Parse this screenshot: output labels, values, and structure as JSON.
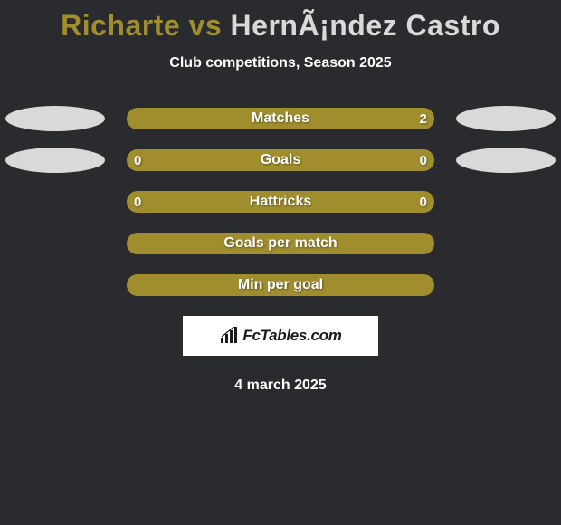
{
  "title": {
    "left": "Richarte",
    "vs": " vs ",
    "right": "HernÃ¡ndez Castro",
    "left_color": "#a08e2e",
    "right_color": "#d9d9d9"
  },
  "subtitle": "Club competitions, Season 2025",
  "rows": [
    {
      "label": "Matches",
      "left_val": "",
      "right_val": "2",
      "left_fill_pct": 0,
      "right_fill_pct": 100,
      "ellipse_left": true,
      "ellipse_right": true,
      "ellipse_left_color": "#d9d9d9",
      "ellipse_right_color": "#d9d9d9"
    },
    {
      "label": "Goals",
      "left_val": "0",
      "right_val": "0",
      "left_fill_pct": 0,
      "right_fill_pct": 0,
      "ellipse_left": true,
      "ellipse_right": true,
      "ellipse_left_color": "#d9d9d9",
      "ellipse_right_color": "#d9d9d9"
    },
    {
      "label": "Hattricks",
      "left_val": "0",
      "right_val": "0",
      "left_fill_pct": 0,
      "right_fill_pct": 0,
      "ellipse_left": false,
      "ellipse_right": false
    },
    {
      "label": "Goals per match",
      "left_val": "",
      "right_val": "",
      "left_fill_pct": 0,
      "right_fill_pct": 0,
      "ellipse_left": false,
      "ellipse_right": false
    },
    {
      "label": "Min per goal",
      "left_val": "",
      "right_val": "",
      "left_fill_pct": 0,
      "right_fill_pct": 0,
      "ellipse_left": false,
      "ellipse_right": false
    }
  ],
  "colors": {
    "pill_bg": "#a08e2e",
    "fill_bg": "#b8a53a",
    "background": "#2a2b2e"
  },
  "logo": {
    "text": "FcTables.com"
  },
  "date": "4 march 2025"
}
